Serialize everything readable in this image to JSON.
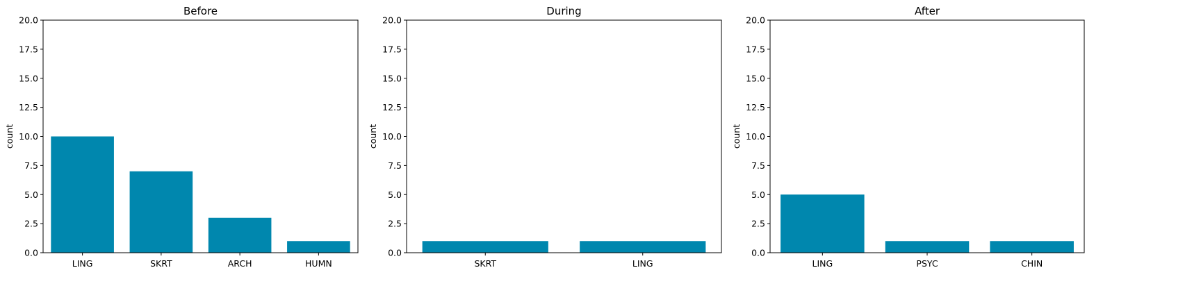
{
  "chart_data": [
    {
      "type": "bar",
      "title": "Before",
      "ylabel": "count",
      "xlabel": "",
      "categories": [
        "LING",
        "SKRT",
        "ARCH",
        "HUMN"
      ],
      "values": [
        10,
        7,
        3,
        1
      ],
      "ylim": [
        0,
        20
      ],
      "yticks": [
        "0.0",
        "2.5",
        "5.0",
        "7.5",
        "10.0",
        "12.5",
        "15.0",
        "17.5",
        "20.0"
      ],
      "bar_color": "#0087ae",
      "grid": false
    },
    {
      "type": "bar",
      "title": "During",
      "ylabel": "count",
      "xlabel": "",
      "categories": [
        "SKRT",
        "LING"
      ],
      "values": [
        1,
        1
      ],
      "ylim": [
        0,
        20
      ],
      "yticks": [
        "0.0",
        "2.5",
        "5.0",
        "7.5",
        "10.0",
        "12.5",
        "15.0",
        "17.5",
        "20.0"
      ],
      "bar_color": "#0087ae",
      "grid": false
    },
    {
      "type": "bar",
      "title": "After",
      "ylabel": "count",
      "xlabel": "",
      "categories": [
        "LING",
        "PSYC",
        "CHIN"
      ],
      "values": [
        5,
        1,
        1
      ],
      "ylim": [
        0,
        20
      ],
      "yticks": [
        "0.0",
        "2.5",
        "5.0",
        "7.5",
        "10.0",
        "12.5",
        "15.0",
        "17.5",
        "20.0"
      ],
      "bar_color": "#0087ae",
      "grid": false
    }
  ]
}
